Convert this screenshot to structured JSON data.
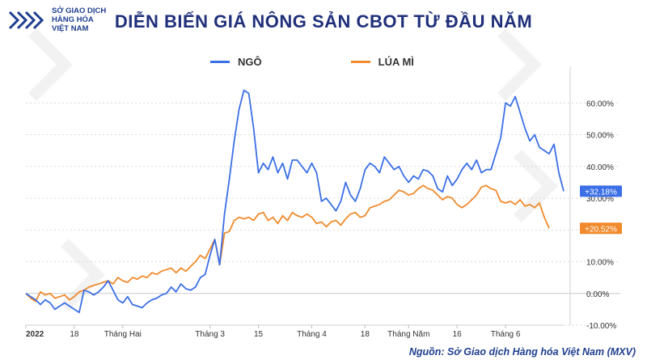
{
  "logo": {
    "line1": "SỞ GIAO DỊCH",
    "line2": "HÀNG HÓA",
    "line3": "VIỆT NAM"
  },
  "title": "DIỄN BIẾN GIÁ NÔNG SẢN CBOT TỪ ĐẦU NĂM",
  "source": "Nguồn: Sở Giao dịch Hàng hóa Việt Nam (MXV)",
  "colors": {
    "corn": "#3b6fe6",
    "wheat": "#f08a2c",
    "title": "#1f2f7a",
    "grid": "#d9d9d9"
  },
  "chart_data": {
    "type": "line",
    "ylim": [
      -10,
      70
    ],
    "y_ticks": [
      -10,
      0,
      10,
      20,
      30,
      40,
      50,
      60
    ],
    "y_tick_labels": [
      "-10.00%",
      "0.00%",
      "10.00%",
      "20.00%",
      "30.00%",
      "40.00%",
      "50.00%",
      "60.00%"
    ],
    "x_tick_labels": [
      {
        "label": "2022",
        "idx": 0,
        "bold": true
      },
      {
        "label": "18",
        "idx": 10,
        "bold": false
      },
      {
        "label": "Tháng Hai",
        "idx": 20,
        "bold": false
      },
      {
        "label": "Tháng 3",
        "idx": 38,
        "bold": false
      },
      {
        "label": "15",
        "idx": 48,
        "bold": false
      },
      {
        "label": "Tháng 4",
        "idx": 59,
        "bold": false
      },
      {
        "label": "18",
        "idx": 70,
        "bold": false
      },
      {
        "label": "Tháng Năm",
        "idx": 79,
        "bold": false
      },
      {
        "label": "16",
        "idx": 89,
        "bold": false
      },
      {
        "label": "Tháng 6",
        "idx": 99,
        "bold": false
      }
    ],
    "series": [
      {
        "name": "NGÔ",
        "end_label": "+32.18%",
        "values": [
          0,
          -1,
          -2,
          -3.5,
          -2,
          -3,
          -5,
          -4,
          -3,
          -4,
          -5,
          -6,
          1,
          0.5,
          -0.5,
          0.5,
          2,
          4,
          1,
          -2,
          -3,
          -1,
          -3.5,
          -4,
          -4.5,
          -3,
          -2,
          -1.5,
          -0.5,
          0,
          2,
          0.5,
          3,
          1.5,
          1,
          2,
          5,
          6,
          12,
          17,
          9,
          25,
          36,
          48,
          58,
          64,
          63,
          52,
          38,
          41,
          39,
          43,
          38,
          41,
          36,
          42,
          42,
          40,
          38,
          41,
          38,
          29,
          30,
          28,
          26,
          29,
          35,
          31,
          29,
          33,
          39,
          41,
          40,
          38,
          43,
          41,
          39,
          40,
          37,
          35,
          37,
          36,
          39,
          38.5,
          37,
          33,
          32,
          37,
          34,
          36,
          39,
          41,
          39,
          42,
          38,
          39,
          39,
          44,
          49,
          60,
          59,
          62,
          57,
          52,
          48,
          50,
          46,
          45,
          44,
          47,
          38,
          32.2
        ]
      },
      {
        "name": "LÚA MÌ",
        "end_label": "+20.52%",
        "values": [
          0,
          -1.5,
          -2.5,
          0.5,
          -0.5,
          0,
          -1.5,
          -1,
          -0.5,
          -2,
          -1,
          0.5,
          1,
          2,
          2.5,
          3,
          3.5,
          4,
          3,
          5,
          4,
          3.5,
          5,
          4.5,
          5.5,
          5,
          6.5,
          6,
          7,
          7.5,
          8,
          6.5,
          8,
          7,
          8.5,
          10,
          12,
          11,
          14,
          17,
          9,
          19,
          19.5,
          23,
          24,
          23.5,
          24,
          23,
          25,
          25.5,
          23,
          24,
          22,
          24.5,
          23,
          25.5,
          24.5,
          24,
          25,
          24,
          22,
          22.5,
          21,
          22.5,
          23,
          21.5,
          23.5,
          25,
          25.5,
          24,
          24.5,
          27,
          27.5,
          28,
          29,
          29.5,
          31,
          32.5,
          32,
          31,
          31.5,
          33,
          34,
          33,
          32.5,
          31,
          29.5,
          30.5,
          30,
          28,
          27,
          28,
          29.5,
          31,
          33.5,
          34,
          33,
          32.5,
          29,
          28.5,
          29,
          28,
          29.5,
          27.5,
          28,
          27,
          28.5,
          24,
          20.5
        ]
      }
    ]
  }
}
